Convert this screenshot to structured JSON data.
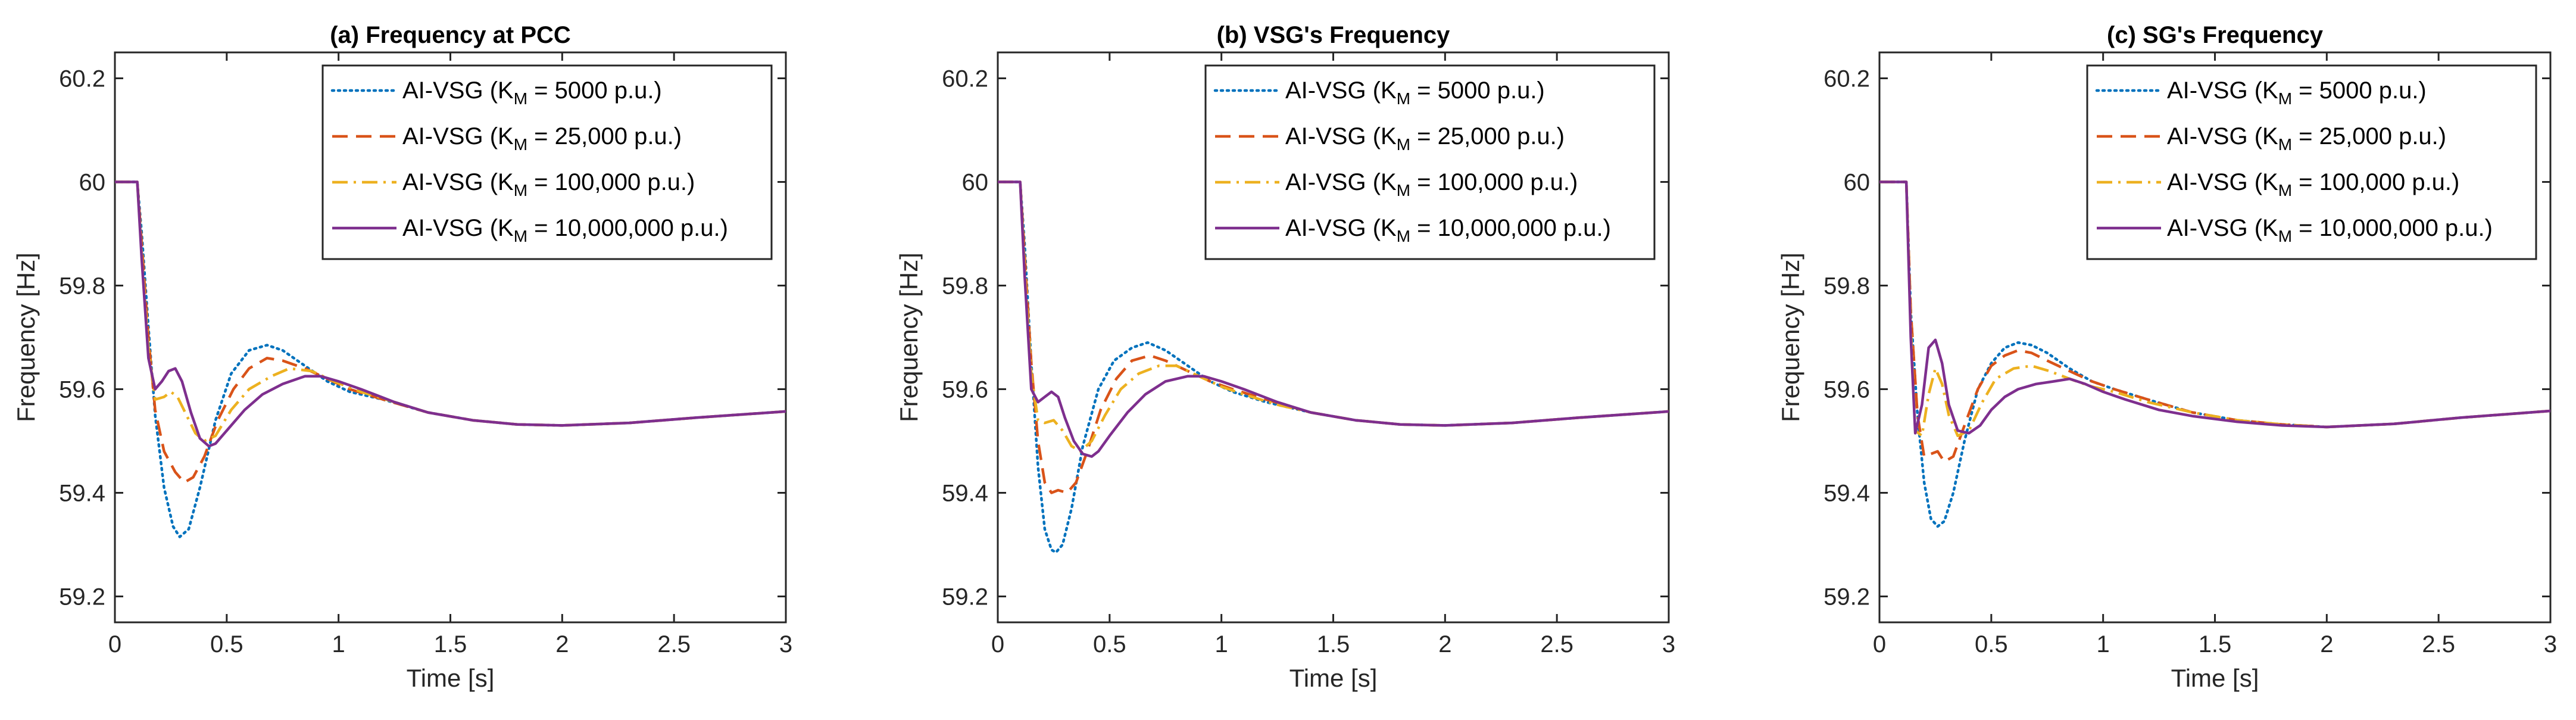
{
  "figure": {
    "colors": {
      "axis": "#262626",
      "background": "#ffffff",
      "series": [
        "#0072BD",
        "#D95319",
        "#EDB120",
        "#7E2F8E"
      ]
    }
  },
  "chart_data": [
    {
      "type": "line",
      "title": "(a) Frequency at PCC",
      "xlabel": "Time [s]",
      "ylabel": "Frequency [Hz]",
      "xlim": [
        0,
        3
      ],
      "ylim": [
        59.15,
        60.25
      ],
      "xticks": [
        0,
        0.5,
        1,
        1.5,
        2,
        2.5,
        3
      ],
      "xtick_labels": [
        "0",
        "0.5",
        "1",
        "1.5",
        "2",
        "2.5",
        "3"
      ],
      "yticks": [
        59.2,
        59.4,
        59.6,
        59.8,
        60,
        60.2
      ],
      "ytick_labels": [
        "59.2",
        "59.4",
        "59.6",
        "59.8",
        "60",
        "60.2"
      ],
      "legend_position": "top-right",
      "series": [
        {
          "name": "AI-VSG (K",
          "subscript": "M",
          "name_suffix": " = 5000 p.u.)",
          "style": "dotted",
          "x": [
            0,
            0.1,
            0.12,
            0.15,
            0.18,
            0.22,
            0.26,
            0.29,
            0.33,
            0.38,
            0.45,
            0.52,
            0.6,
            0.68,
            0.75,
            0.85,
            0.95,
            1.05,
            1.2,
            1.4,
            1.6,
            1.8,
            2.0,
            2.3,
            2.6,
            3.0
          ],
          "y": [
            60,
            60,
            59.9,
            59.72,
            59.55,
            59.41,
            59.335,
            59.315,
            59.33,
            59.41,
            59.54,
            59.63,
            59.675,
            59.685,
            59.675,
            59.645,
            59.615,
            59.595,
            59.58,
            59.555,
            59.54,
            59.532,
            59.53,
            59.535,
            59.545,
            59.557
          ]
        },
        {
          "name": "AI-VSG (K",
          "subscript": "M",
          "name_suffix": " = 25,000 p.u.)",
          "style": "dashed",
          "x": [
            0,
            0.1,
            0.12,
            0.15,
            0.18,
            0.22,
            0.27,
            0.31,
            0.35,
            0.4,
            0.46,
            0.53,
            0.6,
            0.68,
            0.75,
            0.85,
            0.95,
            1.05,
            1.2,
            1.4,
            1.6,
            1.8,
            2.0,
            2.3,
            2.6,
            3.0
          ],
          "y": [
            60,
            60,
            59.88,
            59.7,
            59.56,
            59.48,
            59.44,
            59.42,
            59.43,
            59.47,
            59.54,
            59.6,
            59.64,
            59.66,
            59.655,
            59.64,
            59.62,
            59.6,
            59.58,
            59.555,
            59.54,
            59.532,
            59.53,
            59.535,
            59.545,
            59.557
          ]
        },
        {
          "name": "AI-VSG (K",
          "subscript": "M",
          "name_suffix": " = 100,000 p.u.)",
          "style": "dashdot",
          "x": [
            0,
            0.1,
            0.12,
            0.15,
            0.18,
            0.22,
            0.25,
            0.28,
            0.32,
            0.36,
            0.4,
            0.45,
            0.52,
            0.6,
            0.7,
            0.78,
            0.88,
            0.98,
            1.1,
            1.25,
            1.4,
            1.6,
            1.8,
            2.0,
            2.3,
            2.6,
            3.0
          ],
          "y": [
            60,
            60,
            59.86,
            59.68,
            59.58,
            59.585,
            59.595,
            59.585,
            59.55,
            59.515,
            59.5,
            59.51,
            59.56,
            59.6,
            59.625,
            59.64,
            59.635,
            59.615,
            59.595,
            59.575,
            59.555,
            59.54,
            59.532,
            59.53,
            59.535,
            59.545,
            59.557
          ]
        },
        {
          "name": "AI-VSG (K",
          "subscript": "M",
          "name_suffix": " = 10,000,000 p.u.)",
          "style": "solid",
          "x": [
            0,
            0.1,
            0.12,
            0.15,
            0.18,
            0.21,
            0.24,
            0.27,
            0.3,
            0.34,
            0.38,
            0.42,
            0.45,
            0.5,
            0.58,
            0.66,
            0.75,
            0.85,
            0.92,
            1.0,
            1.1,
            1.25,
            1.4,
            1.6,
            1.8,
            2.0,
            2.3,
            2.6,
            3.0
          ],
          "y": [
            60,
            60,
            59.85,
            59.66,
            59.6,
            59.615,
            59.635,
            59.64,
            59.615,
            59.555,
            59.505,
            59.49,
            59.495,
            59.52,
            59.56,
            59.59,
            59.61,
            59.625,
            59.625,
            59.615,
            59.6,
            59.575,
            59.555,
            59.54,
            59.532,
            59.53,
            59.535,
            59.545,
            59.557
          ]
        }
      ]
    },
    {
      "type": "line",
      "title": "(b) VSG's Frequency",
      "xlabel": "Time [s]",
      "ylabel": "Frequency [Hz]",
      "xlim": [
        0,
        3
      ],
      "ylim": [
        59.15,
        60.25
      ],
      "xticks": [
        0,
        0.5,
        1,
        1.5,
        2,
        2.5,
        3
      ],
      "xtick_labels": [
        "0",
        "0.5",
        "1",
        "1.5",
        "2",
        "2.5",
        "3"
      ],
      "yticks": [
        59.2,
        59.4,
        59.6,
        59.8,
        60,
        60.2
      ],
      "ytick_labels": [
        "59.2",
        "59.4",
        "59.6",
        "59.8",
        "60",
        "60.2"
      ],
      "legend_position": "top-right",
      "series": [
        {
          "name": "AI-VSG (K",
          "subscript": "M",
          "name_suffix": " = 5000 p.u.)",
          "style": "dotted",
          "x": [
            0,
            0.1,
            0.12,
            0.15,
            0.18,
            0.21,
            0.24,
            0.26,
            0.29,
            0.33,
            0.38,
            0.45,
            0.52,
            0.6,
            0.67,
            0.75,
            0.85,
            0.95,
            1.05,
            1.2,
            1.4,
            1.6,
            1.8,
            2.0,
            2.3,
            2.6,
            3.0
          ],
          "y": [
            60,
            60,
            59.88,
            59.65,
            59.45,
            59.33,
            59.29,
            59.285,
            59.3,
            59.37,
            59.49,
            59.6,
            59.655,
            59.68,
            59.69,
            59.675,
            59.645,
            59.615,
            59.595,
            59.575,
            59.555,
            59.54,
            59.532,
            59.53,
            59.535,
            59.545,
            59.557
          ]
        },
        {
          "name": "AI-VSG (K",
          "subscript": "M",
          "name_suffix": " = 25,000 p.u.)",
          "style": "dashed",
          "x": [
            0,
            0.1,
            0.12,
            0.15,
            0.18,
            0.21,
            0.24,
            0.27,
            0.31,
            0.35,
            0.4,
            0.46,
            0.53,
            0.6,
            0.68,
            0.75,
            0.85,
            0.95,
            1.05,
            1.2,
            1.4,
            1.6,
            1.8,
            2.0,
            2.3,
            2.6,
            3.0
          ],
          "y": [
            60,
            60,
            59.86,
            59.65,
            59.5,
            59.42,
            59.4,
            59.405,
            59.4,
            59.42,
            59.48,
            59.56,
            59.62,
            59.655,
            59.665,
            59.655,
            59.635,
            59.615,
            59.6,
            59.58,
            59.555,
            59.54,
            59.532,
            59.53,
            59.535,
            59.545,
            59.557
          ]
        },
        {
          "name": "AI-VSG (K",
          "subscript": "M",
          "name_suffix": " = 100,000 p.u.)",
          "style": "dashdot",
          "x": [
            0,
            0.1,
            0.12,
            0.15,
            0.18,
            0.21,
            0.25,
            0.29,
            0.33,
            0.37,
            0.42,
            0.48,
            0.55,
            0.63,
            0.72,
            0.8,
            0.9,
            1.0,
            1.1,
            1.25,
            1.4,
            1.6,
            1.8,
            2.0,
            2.3,
            2.6,
            3.0
          ],
          "y": [
            60,
            60,
            59.84,
            59.63,
            59.54,
            59.535,
            59.54,
            59.52,
            59.49,
            59.48,
            59.5,
            59.55,
            59.6,
            59.63,
            59.645,
            59.645,
            59.625,
            59.605,
            59.59,
            59.57,
            59.555,
            59.54,
            59.532,
            59.53,
            59.535,
            59.545,
            59.557
          ]
        },
        {
          "name": "AI-VSG (K",
          "subscript": "M",
          "name_suffix": " = 10,000,000 p.u.)",
          "style": "solid",
          "x": [
            0,
            0.1,
            0.12,
            0.15,
            0.18,
            0.21,
            0.24,
            0.27,
            0.3,
            0.34,
            0.38,
            0.42,
            0.45,
            0.5,
            0.58,
            0.66,
            0.75,
            0.85,
            0.92,
            1.0,
            1.1,
            1.25,
            1.4,
            1.6,
            1.8,
            2.0,
            2.3,
            2.6,
            3.0
          ],
          "y": [
            60,
            60,
            59.82,
            59.6,
            59.575,
            59.585,
            59.595,
            59.585,
            59.545,
            59.5,
            59.475,
            59.47,
            59.48,
            59.51,
            59.555,
            59.59,
            59.615,
            59.625,
            59.625,
            59.615,
            59.6,
            59.575,
            59.555,
            59.54,
            59.532,
            59.53,
            59.535,
            59.545,
            59.557
          ]
        }
      ]
    },
    {
      "type": "line",
      "title": "(c) SG's Frequency",
      "xlabel": "Time [s]",
      "ylabel": "Frequency [Hz]",
      "xlim": [
        0,
        3
      ],
      "ylim": [
        59.15,
        60.25
      ],
      "xticks": [
        0,
        0.5,
        1,
        1.5,
        2,
        2.5,
        3
      ],
      "xtick_labels": [
        "0",
        "0.5",
        "1",
        "1.5",
        "2",
        "2.5",
        "3"
      ],
      "yticks": [
        59.2,
        59.4,
        59.6,
        59.8,
        60,
        60.2
      ],
      "ytick_labels": [
        "59.2",
        "59.4",
        "59.6",
        "59.8",
        "60",
        "60.2"
      ],
      "legend_position": "top-right",
      "series": [
        {
          "name": "AI-VSG (K",
          "subscript": "M",
          "name_suffix": " = 5000 p.u.)",
          "style": "dotted",
          "x": [
            0,
            0.1,
            0.12,
            0.14,
            0.17,
            0.2,
            0.23,
            0.26,
            0.29,
            0.33,
            0.38,
            0.44,
            0.5,
            0.56,
            0.62,
            0.68,
            0.75,
            0.85,
            0.95,
            1.05,
            1.2,
            1.4,
            1.6,
            1.8,
            2.0,
            2.3,
            2.6,
            3.0
          ],
          "y": [
            60,
            60,
            60,
            59.75,
            59.55,
            59.42,
            59.35,
            59.335,
            59.345,
            59.4,
            59.5,
            59.6,
            59.65,
            59.68,
            59.69,
            59.685,
            59.67,
            59.64,
            59.615,
            59.6,
            59.58,
            59.555,
            59.54,
            59.532,
            59.527,
            59.533,
            59.545,
            59.558
          ]
        },
        {
          "name": "AI-VSG (K",
          "subscript": "M",
          "name_suffix": " = 25,000 p.u.)",
          "style": "dashed",
          "x": [
            0,
            0.1,
            0.12,
            0.14,
            0.17,
            0.2,
            0.23,
            0.26,
            0.29,
            0.33,
            0.38,
            0.44,
            0.5,
            0.56,
            0.62,
            0.68,
            0.75,
            0.85,
            0.95,
            1.05,
            1.2,
            1.4,
            1.6,
            1.8,
            2.0,
            2.3,
            2.6,
            3.0
          ],
          "y": [
            60,
            60,
            60,
            59.75,
            59.55,
            59.47,
            59.475,
            59.48,
            59.46,
            59.47,
            59.53,
            59.6,
            59.645,
            59.665,
            59.675,
            59.67,
            59.655,
            59.635,
            59.615,
            59.6,
            59.58,
            59.555,
            59.54,
            59.532,
            59.527,
            59.533,
            59.545,
            59.558
          ]
        },
        {
          "name": "AI-VSG (K",
          "subscript": "M",
          "name_suffix": " = 100,000 p.u.)",
          "style": "dashdot",
          "x": [
            0,
            0.1,
            0.12,
            0.14,
            0.16,
            0.19,
            0.22,
            0.25,
            0.28,
            0.31,
            0.35,
            0.4,
            0.46,
            0.52,
            0.6,
            0.68,
            0.76,
            0.85,
            0.95,
            1.05,
            1.2,
            1.4,
            1.6,
            1.8,
            2.0,
            2.3,
            2.6,
            3.0
          ],
          "y": [
            60,
            60,
            60,
            59.72,
            59.52,
            59.51,
            59.59,
            59.64,
            59.61,
            59.55,
            59.51,
            59.52,
            59.575,
            59.62,
            59.64,
            59.645,
            59.635,
            59.62,
            59.605,
            59.595,
            59.575,
            59.555,
            59.54,
            59.532,
            59.527,
            59.533,
            59.545,
            59.558
          ]
        },
        {
          "name": "AI-VSG (K",
          "subscript": "M",
          "name_suffix": " = 10,000,000 p.u.)",
          "style": "solid",
          "x": [
            0,
            0.1,
            0.12,
            0.14,
            0.16,
            0.19,
            0.22,
            0.25,
            0.28,
            0.31,
            0.35,
            0.4,
            0.45,
            0.5,
            0.56,
            0.62,
            0.7,
            0.78,
            0.85,
            0.92,
            1.0,
            1.1,
            1.25,
            1.4,
            1.6,
            1.8,
            2.0,
            2.3,
            2.6,
            3.0
          ],
          "y": [
            60,
            60,
            60,
            59.7,
            59.515,
            59.57,
            59.68,
            59.695,
            59.65,
            59.57,
            59.52,
            59.515,
            59.53,
            59.56,
            59.585,
            59.6,
            59.61,
            59.615,
            59.62,
            59.61,
            59.595,
            59.58,
            59.56,
            59.548,
            59.537,
            59.53,
            59.527,
            59.533,
            59.545,
            59.558
          ]
        }
      ]
    }
  ]
}
